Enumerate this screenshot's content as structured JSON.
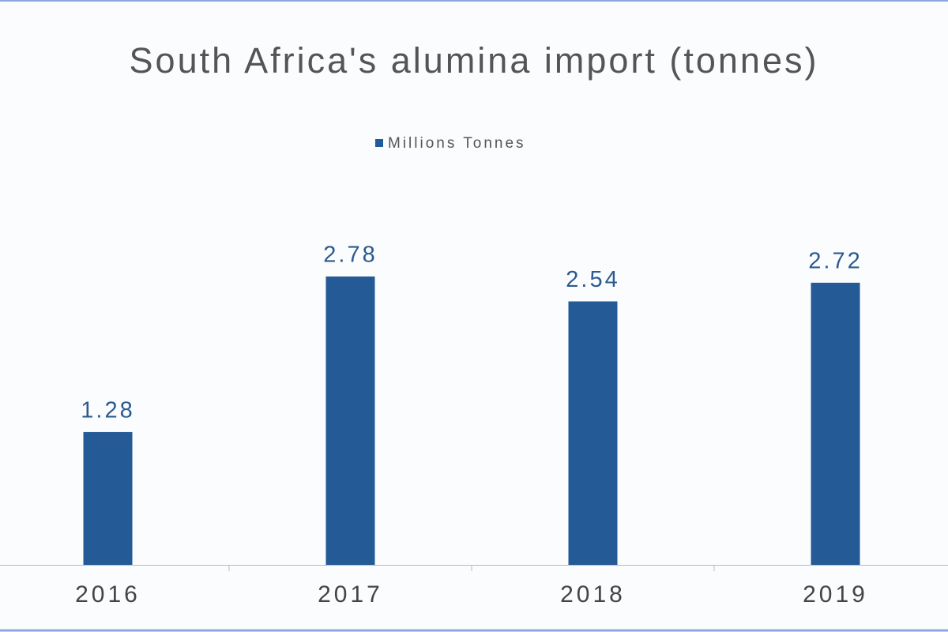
{
  "chart_data": {
    "type": "bar",
    "title": "South Africa's alumina import (tonnes)",
    "categories": [
      "2016",
      "2017",
      "2018",
      "2019"
    ],
    "series": [
      {
        "name": "Millions Tonnes",
        "color": "#245a96",
        "values": [
          1.28,
          2.78,
          2.54,
          2.72
        ]
      }
    ]
  }
}
